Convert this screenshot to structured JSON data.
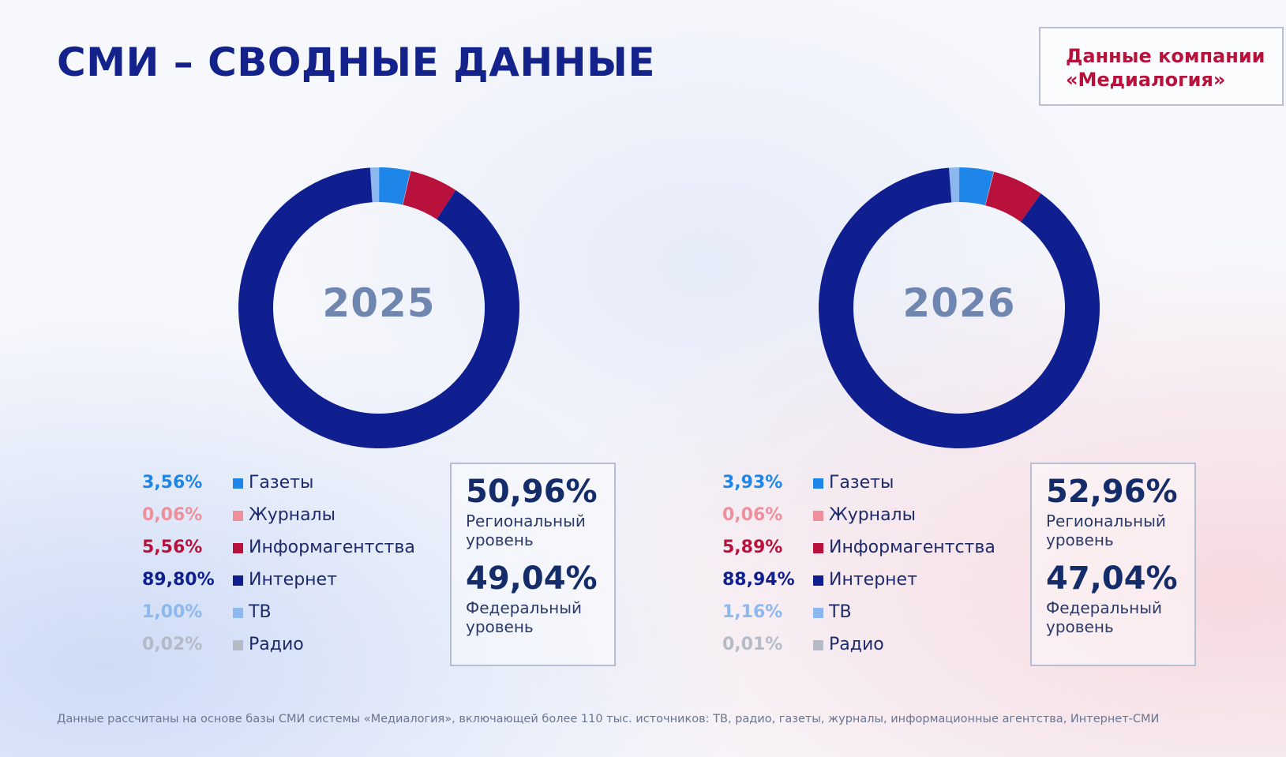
{
  "page": {
    "title": "СМИ – СВОДНЫЕ ДАННЫЕ",
    "source_note": "Данные компании «Медиалогия»",
    "footnote": "Данные рассчитаны на основе базы СМИ системы «Медиалогия», включающей более 110 тыс. источников: ТВ, радио, газеты, журналы, информационные агентства, Интернет-СМИ"
  },
  "chart_data": [
    {
      "type": "pie",
      "style": "donut",
      "center_label": "2025",
      "categories": [
        "Газеты",
        "Журналы",
        "Информагентства",
        "Интернет",
        "ТВ",
        "Радио"
      ],
      "values": [
        3.56,
        0.06,
        5.56,
        89.8,
        1.0,
        0.02
      ],
      "value_labels": [
        "3,56%",
        "0,06%",
        "5,56%",
        "89,80%",
        "1,00%",
        "0,02%"
      ],
      "colors": [
        "#1d86e8",
        "#ef8f9b",
        "#b8123c",
        "#0f1f8f",
        "#8cb8ef",
        "#b4bbc7"
      ],
      "stats": [
        {
          "value": "50,96%",
          "label": "Региональный уровень"
        },
        {
          "value": "49,04%",
          "label": "Федеральный уровень"
        }
      ]
    },
    {
      "type": "pie",
      "style": "donut",
      "center_label": "2026",
      "categories": [
        "Газеты",
        "Журналы",
        "Информагентства",
        "Интернет",
        "ТВ",
        "Радио"
      ],
      "values": [
        3.93,
        0.06,
        5.89,
        88.94,
        1.16,
        0.01
      ],
      "value_labels": [
        "3,93%",
        "0,06%",
        "5,89%",
        "88,94%",
        "1,16%",
        "0,01%"
      ],
      "colors": [
        "#1d86e8",
        "#ef8f9b",
        "#b8123c",
        "#0f1f8f",
        "#8cb8ef",
        "#b4bbc7"
      ],
      "stats": [
        {
          "value": "52,96%",
          "label": "Региональный уровень"
        },
        {
          "value": "47,04%",
          "label": "Федеральный уровень"
        }
      ]
    }
  ]
}
